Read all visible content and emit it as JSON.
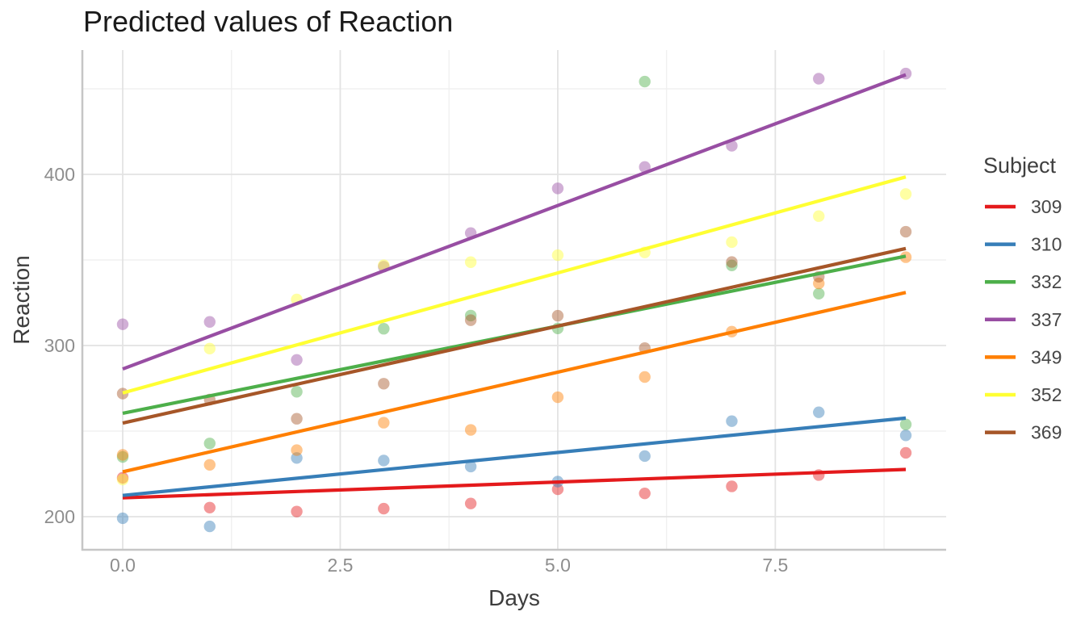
{
  "chart_data": {
    "type": "scatter",
    "title": "Predicted values of Reaction",
    "xlabel": "Days",
    "ylabel": "Reaction",
    "legend": {
      "title": "Subject",
      "position": "right"
    },
    "grid": true,
    "x_axis": {
      "range": [
        -0.45,
        9.45
      ],
      "ticks": [
        {
          "value": 0,
          "label": "0.0"
        },
        {
          "value": 2.5,
          "label": "2.5"
        },
        {
          "value": 5,
          "label": "5.0"
        },
        {
          "value": 7.5,
          "label": "7.5"
        }
      ],
      "minor_ticks": [
        1.25,
        3.75,
        6.25,
        8.75
      ]
    },
    "y_axis": {
      "range": [
        181,
        472
      ],
      "ticks": [
        {
          "value": 200,
          "label": "200"
        },
        {
          "value": 300,
          "label": "300"
        },
        {
          "value": 400,
          "label": "400"
        }
      ],
      "minor_ticks": [
        250,
        350,
        450
      ]
    },
    "x_values": [
      0,
      1,
      2,
      3,
      4,
      5,
      6,
      7,
      8,
      9
    ],
    "series": [
      {
        "name": "309",
        "color": "#E41A1C",
        "points": [
          222.7,
          205.3,
          203.0,
          204.7,
          207.7,
          216.0,
          213.6,
          217.7,
          224.3,
          237.3
        ],
        "fit": {
          "start": 211.0,
          "end": 227.6
        }
      },
      {
        "name": "310",
        "color": "#377EB8",
        "points": [
          199.1,
          194.3,
          234.3,
          232.8,
          229.3,
          220.5,
          235.4,
          255.8,
          261.0,
          247.5
        ],
        "fit": {
          "start": 212.4,
          "end": 257.6
        }
      },
      {
        "name": "332",
        "color": "#4DAF4A",
        "points": [
          234.9,
          242.8,
          273.0,
          309.8,
          317.5,
          310.0,
          454.2,
          346.8,
          330.3,
          253.9
        ],
        "fit": {
          "start": 260.4,
          "end": 352.2
        }
      },
      {
        "name": "337",
        "color": "#984EA3",
        "points": [
          312.4,
          313.8,
          291.6,
          346.1,
          365.7,
          391.8,
          404.3,
          416.7,
          455.9,
          458.9
        ],
        "fit": {
          "start": 286.3,
          "end": 458.2
        }
      },
      {
        "name": "349",
        "color": "#FF7F00",
        "points": [
          236.1,
          230.3,
          238.9,
          254.9,
          250.7,
          269.8,
          281.6,
          308.1,
          336.3,
          351.6
        ],
        "fit": {
          "start": 226.2,
          "end": 331.0
        }
      },
      {
        "name": "352",
        "color": "#FFFF33",
        "points": [
          221.7,
          298.2,
          326.9,
          346.9,
          348.7,
          352.8,
          354.4,
          360.4,
          375.6,
          388.5
        ],
        "fit": {
          "start": 272.3,
          "end": 398.5
        }
      },
      {
        "name": "369",
        "color": "#A65628",
        "points": [
          271.9,
          268.4,
          257.2,
          277.7,
          314.8,
          317.4,
          298.5,
          348.8,
          340.2,
          366.5
        ],
        "fit": {
          "start": 254.7,
          "end": 356.7
        }
      }
    ],
    "point_style": {
      "radius": 7.2,
      "opacity": 0.45
    },
    "line_width": 4.2,
    "theme_colors": {
      "grid_major": "#e3e3e3",
      "grid_minor": "#f0f0f0",
      "axis_line": "#c6c6c6"
    }
  }
}
